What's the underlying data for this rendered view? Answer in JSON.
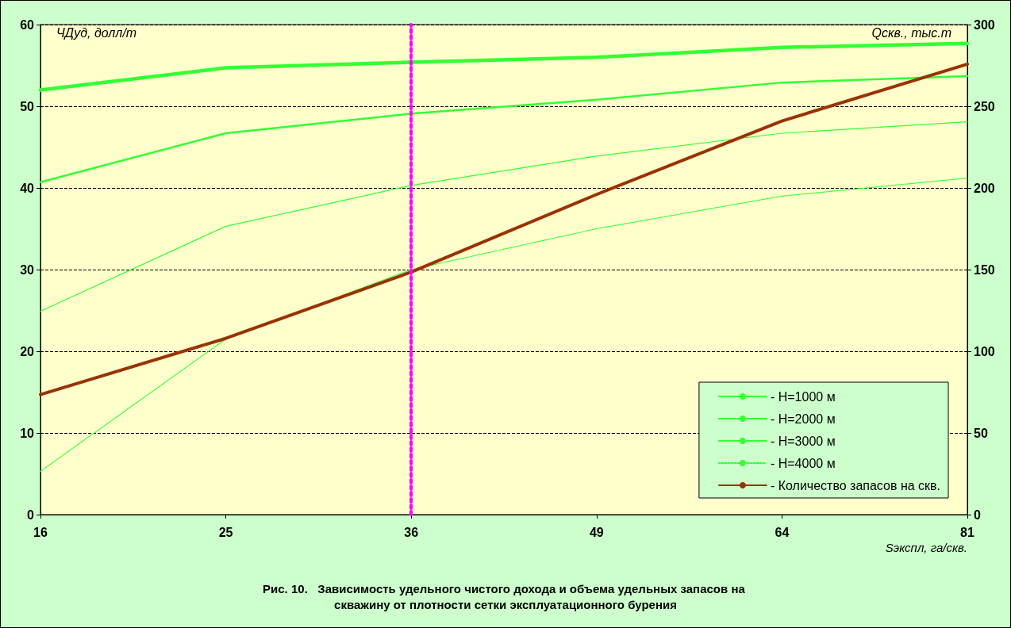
{
  "chart_data": {
    "type": "line",
    "title": "Рис. 10.   Зависимость удельного чистого дохода и объема удельных запасов на скважину от плотности сетки эксплуатационного бурения",
    "xlabel": "Sэкспл, га/скв.",
    "ylabel": "ЧДуд, долл/т",
    "y2label": "Qскв., тыс.т",
    "categories": [
      "16",
      "25",
      "36",
      "49",
      "64",
      "81"
    ],
    "series": [
      {
        "name": "- H=1000 м",
        "color": "#33ff33",
        "values": [
          52.0,
          54.7,
          55.4,
          56.0,
          57.2,
          57.7
        ]
      },
      {
        "name": "- H=2000 м",
        "color": "#33ff33",
        "values": [
          40.7,
          46.7,
          49.1,
          50.8,
          52.9,
          53.7
        ]
      },
      {
        "name": "- H=3000 м",
        "color": "#33ff33",
        "values": [
          24.9,
          35.3,
          40.3,
          43.9,
          46.7,
          48.1
        ]
      },
      {
        "name": "- H=4000 м",
        "color": "#33ff33",
        "line_style": "dotted",
        "values": [
          5.3,
          21.5,
          30.0,
          35.0,
          39.0,
          41.2
        ]
      },
      {
        "name": "- Количество запасов на скв.",
        "color": "#993300",
        "axis": "y2",
        "values": [
          73.5,
          107.9,
          148.5,
          196,
          241,
          275.8
        ]
      }
    ],
    "ylim": [
      0,
      60
    ],
    "yticks": [
      0,
      10,
      20,
      30,
      40,
      50,
      60
    ],
    "y2lim": [
      0,
      300
    ],
    "y2ticks": [
      0,
      50,
      100,
      150,
      200,
      250,
      300
    ],
    "ref_lines": [
      {
        "axis": "x",
        "value": "36",
        "color": "#ff00ff",
        "line_style": "dotted"
      }
    ],
    "grid": "y",
    "legend": "bottom right",
    "marker": "none",
    "line_style": "solid"
  }
}
